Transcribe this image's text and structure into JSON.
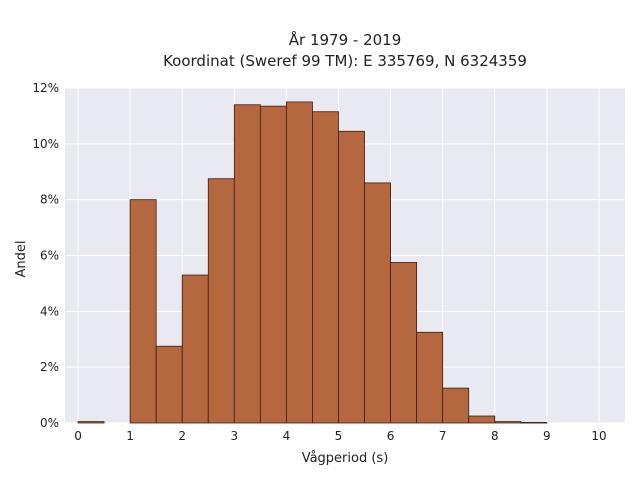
{
  "chart_data": {
    "type": "bar",
    "title_line1": "År 1979 - 2019",
    "title_line2": "Koordinat (Sweref 99 TM): E 335769, N 6324359",
    "xlabel": "Vågperiod (s)",
    "ylabel": "Andel",
    "xlim": [
      -0.25,
      10.5
    ],
    "ylim": [
      0,
      12
    ],
    "x_ticks": [
      0,
      1,
      2,
      3,
      4,
      5,
      6,
      7,
      8,
      9,
      10
    ],
    "y_ticks": [
      0,
      2,
      4,
      6,
      8,
      10,
      12
    ],
    "y_tick_labels": [
      "0%",
      "2%",
      "4%",
      "6%",
      "8%",
      "10%",
      "12%"
    ],
    "grid": true,
    "bin_width": 0.5,
    "bins": [
      {
        "x0": 0.0,
        "value": 0.05
      },
      {
        "x0": 0.5,
        "value": 0
      },
      {
        "x0": 1.0,
        "value": 8.0
      },
      {
        "x0": 1.5,
        "value": 2.75
      },
      {
        "x0": 2.0,
        "value": 5.3
      },
      {
        "x0": 2.5,
        "value": 8.75
      },
      {
        "x0": 3.0,
        "value": 11.4
      },
      {
        "x0": 3.5,
        "value": 11.35
      },
      {
        "x0": 4.0,
        "value": 11.5
      },
      {
        "x0": 4.5,
        "value": 11.15
      },
      {
        "x0": 5.0,
        "value": 10.45
      },
      {
        "x0": 5.5,
        "value": 8.6
      },
      {
        "x0": 6.0,
        "value": 5.75
      },
      {
        "x0": 6.5,
        "value": 3.25
      },
      {
        "x0": 7.0,
        "value": 1.25
      },
      {
        "x0": 7.5,
        "value": 0.25
      },
      {
        "x0": 8.0,
        "value": 0.05
      },
      {
        "x0": 8.5,
        "value": 0.02
      }
    ],
    "colors": {
      "bar_fill": "#b5683f",
      "bar_stroke": "#3b1f12",
      "plot_bg": "#e9e9f1",
      "grid": "#ffffff"
    }
  }
}
